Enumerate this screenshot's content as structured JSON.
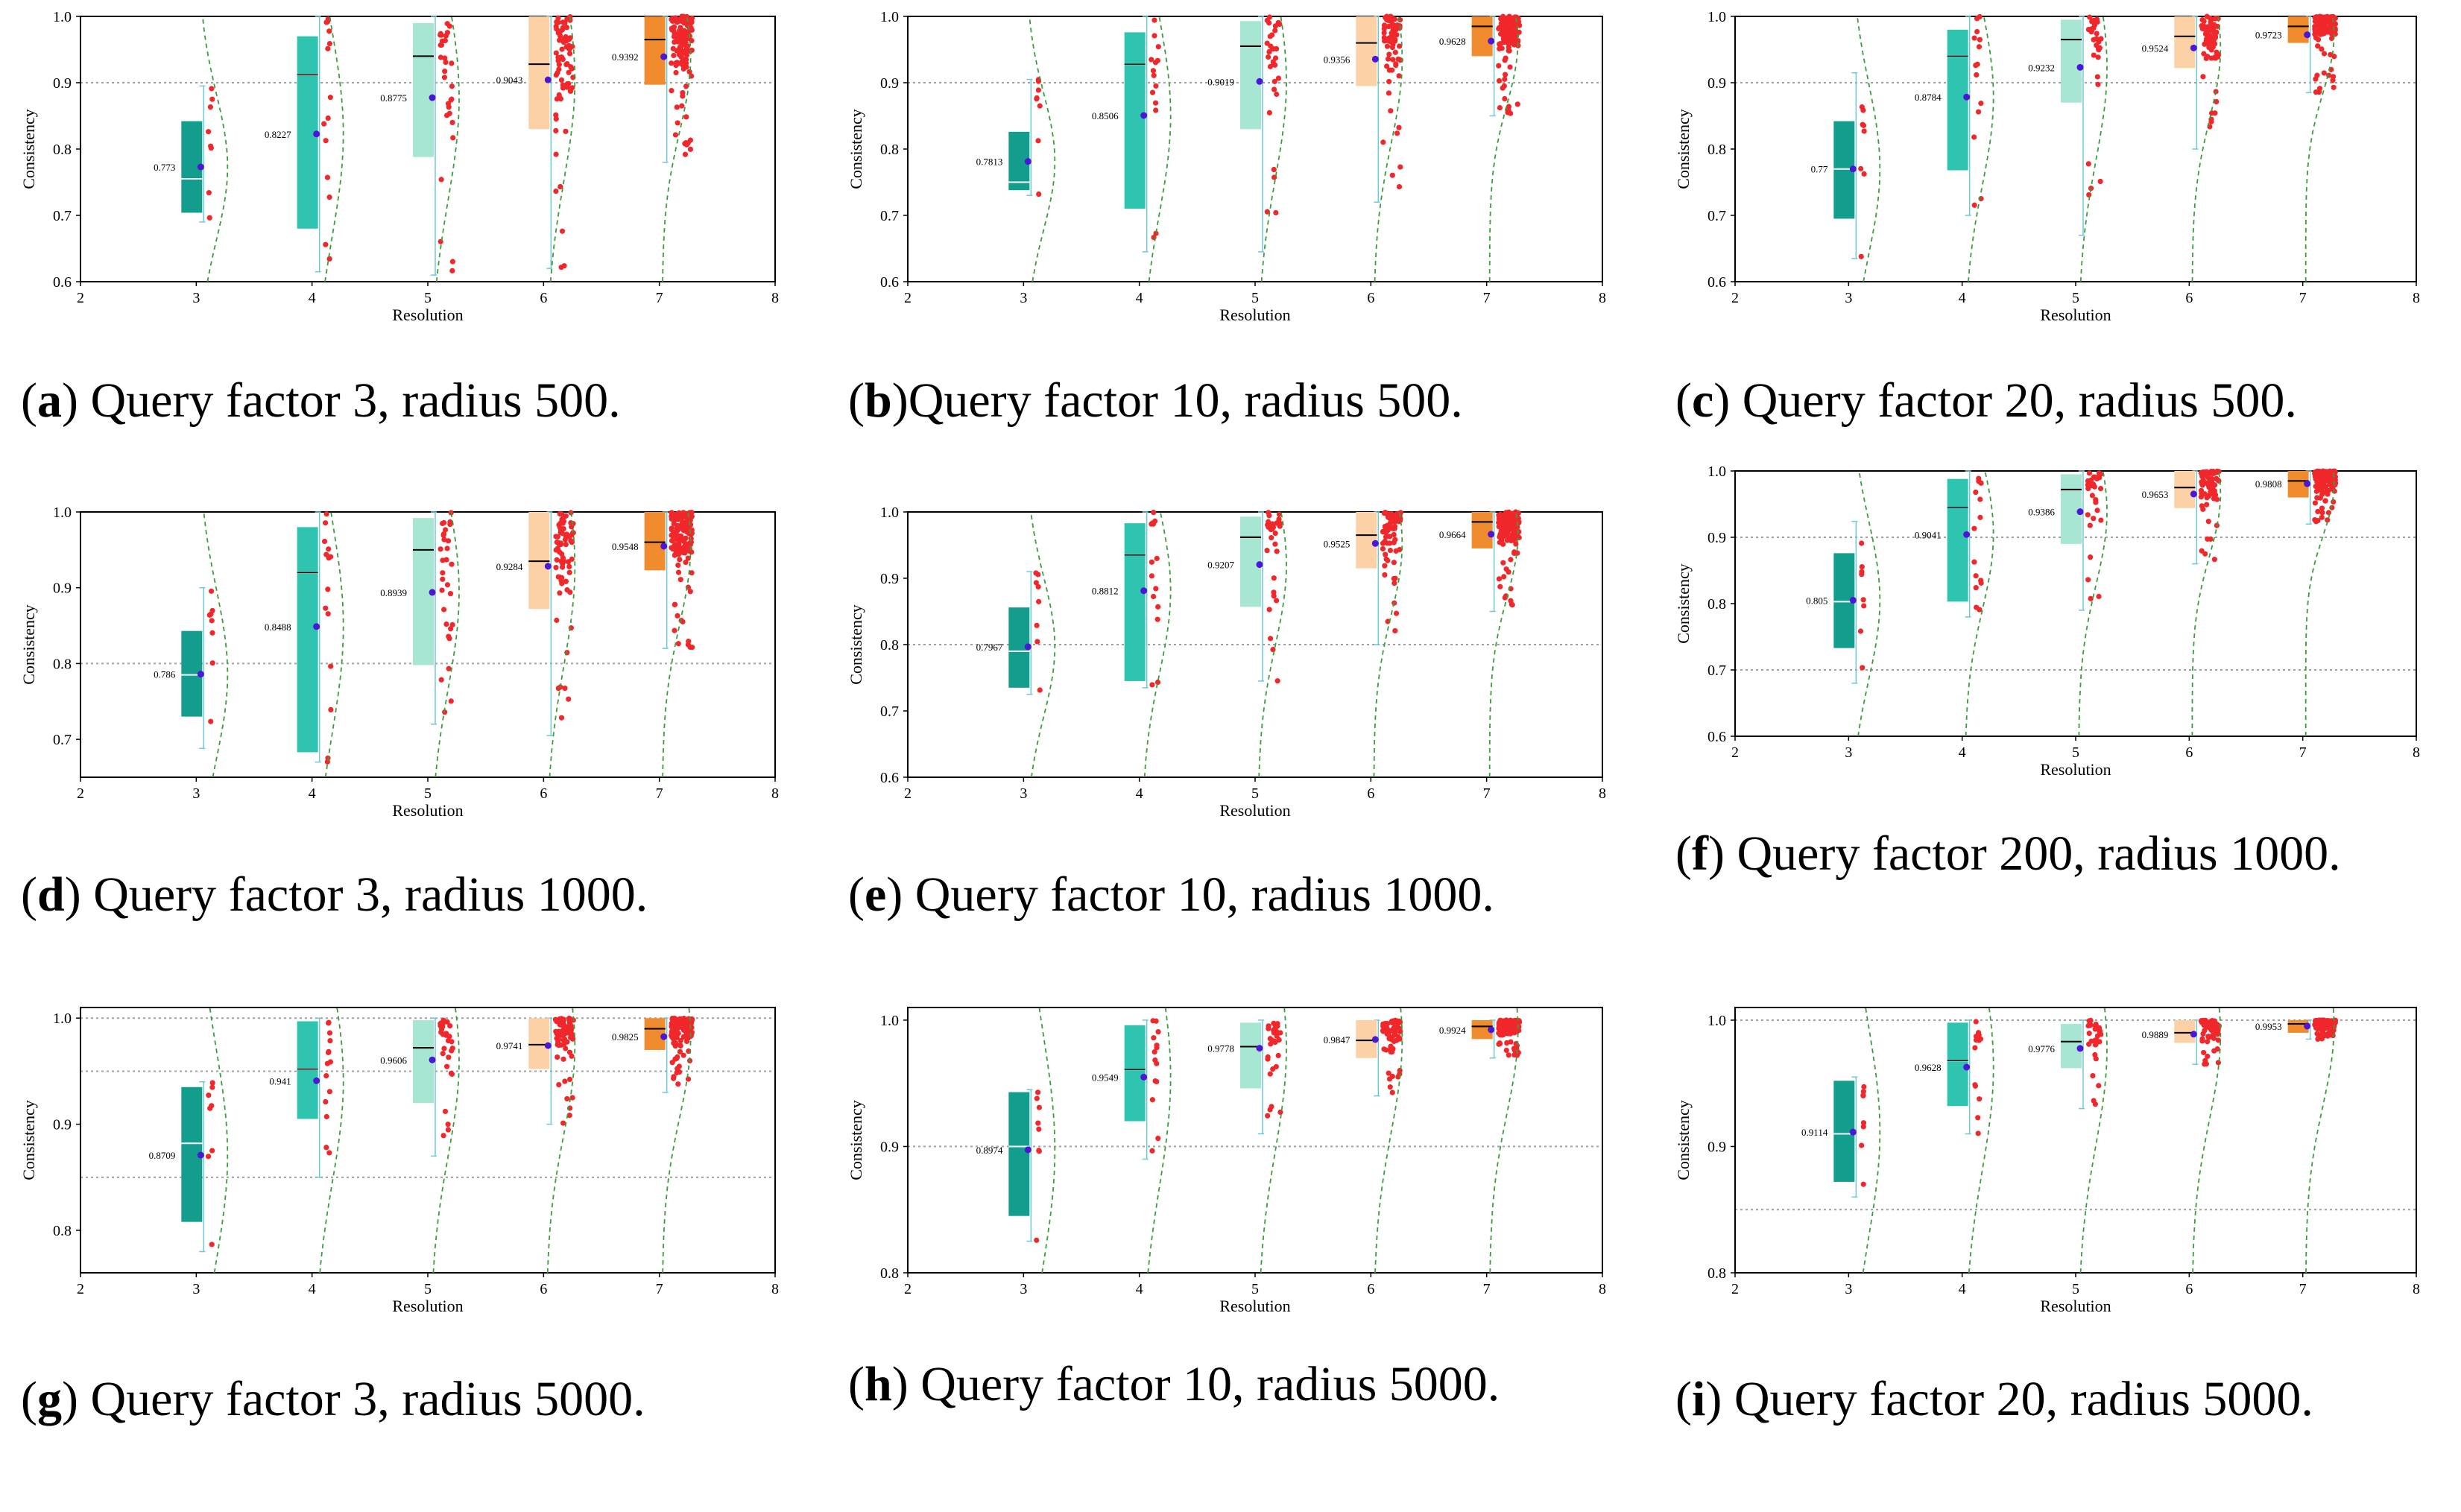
{
  "figure": {
    "x_label": "Resolution",
    "y_label": "Consistency"
  },
  "chart_data": [
    {
      "id": "a",
      "type": "box",
      "caption_letter": "a",
      "caption_text": "Query factor 3, radius 500.",
      "xlabel": "Resolution",
      "ylabel": "Consistency",
      "xlim": [
        2,
        8
      ],
      "ylim": [
        0.6,
        1.0
      ],
      "x_ticks": [
        "2",
        "3",
        "4",
        "5",
        "6",
        "7",
        "8"
      ],
      "y_ticks": [
        "0.6",
        "0.7",
        "0.8",
        "0.9",
        "1.0"
      ],
      "threshold_lines": [
        0.9
      ],
      "boxes": [
        {
          "resolution": 3,
          "q1": 0.704,
          "median": 0.755,
          "q3": 0.842,
          "whisker_low": 0.69,
          "whisker_high": 0.895,
          "mean": 0.773,
          "mean_label": "0.773"
        },
        {
          "resolution": 4,
          "q1": 0.68,
          "median": 0.912,
          "q3": 0.97,
          "whisker_low": 0.615,
          "whisker_high": 1.0,
          "mean": 0.8227,
          "mean_label": "0.8227"
        },
        {
          "resolution": 5,
          "q1": 0.788,
          "median": 0.94,
          "q3": 0.99,
          "whisker_low": 0.61,
          "whisker_high": 1.0,
          "mean": 0.8775,
          "mean_label": "0.8775"
        },
        {
          "resolution": 6,
          "q1": 0.83,
          "median": 0.928,
          "q3": 1.0,
          "whisker_low": 0.62,
          "whisker_high": 1.0,
          "mean": 0.9043,
          "mean_label": "0.9043"
        },
        {
          "resolution": 7,
          "q1": 0.897,
          "median": 0.965,
          "q3": 1.0,
          "whisker_low": 0.78,
          "whisker_high": 1.0,
          "mean": 0.9392,
          "mean_label": "0.9392"
        }
      ]
    },
    {
      "id": "b",
      "type": "box",
      "caption_letter": "b",
      "caption_text": "Query factor 10, radius 500.",
      "xlabel": "Resolution",
      "ylabel": "Consistency",
      "xlim": [
        2,
        8
      ],
      "ylim": [
        0.6,
        1.0
      ],
      "x_ticks": [
        "2",
        "3",
        "4",
        "5",
        "6",
        "7",
        "8"
      ],
      "y_ticks": [
        "0.6",
        "0.7",
        "0.8",
        "0.9",
        "1.0"
      ],
      "threshold_lines": [
        0.9
      ],
      "boxes": [
        {
          "resolution": 3,
          "q1": 0.738,
          "median": 0.75,
          "q3": 0.826,
          "whisker_low": 0.73,
          "whisker_high": 0.905,
          "mean": 0.7813,
          "mean_label": "0.7813"
        },
        {
          "resolution": 4,
          "q1": 0.71,
          "median": 0.928,
          "q3": 0.976,
          "whisker_low": 0.645,
          "whisker_high": 1.0,
          "mean": 0.8506,
          "mean_label": "0.8506"
        },
        {
          "resolution": 5,
          "q1": 0.83,
          "median": 0.955,
          "q3": 0.993,
          "whisker_low": 0.645,
          "whisker_high": 1.0,
          "mean": 0.9019,
          "mean_label": "0.9019"
        },
        {
          "resolution": 6,
          "q1": 0.895,
          "median": 0.96,
          "q3": 1.0,
          "whisker_low": 0.72,
          "whisker_high": 1.0,
          "mean": 0.9356,
          "mean_label": "0.9356"
        },
        {
          "resolution": 7,
          "q1": 0.94,
          "median": 0.985,
          "q3": 1.0,
          "whisker_low": 0.85,
          "whisker_high": 1.0,
          "mean": 0.9628,
          "mean_label": "0.9628"
        }
      ]
    },
    {
      "id": "c",
      "type": "box",
      "caption_letter": "c",
      "caption_text": "Query factor 20, radius 500.",
      "xlabel": "Resolution",
      "ylabel": "Consistency",
      "xlim": [
        2,
        8
      ],
      "ylim": [
        0.6,
        1.0
      ],
      "x_ticks": [
        "2",
        "3",
        "4",
        "5",
        "6",
        "7",
        "8"
      ],
      "y_ticks": [
        "0.6",
        "0.7",
        "0.8",
        "0.9",
        "1.0"
      ],
      "threshold_lines": [
        0.9
      ],
      "boxes": [
        {
          "resolution": 3,
          "q1": 0.695,
          "median": 0.77,
          "q3": 0.842,
          "whisker_low": 0.635,
          "whisker_high": 0.915,
          "mean": 0.77,
          "mean_label": "0.77"
        },
        {
          "resolution": 4,
          "q1": 0.768,
          "median": 0.94,
          "q3": 0.98,
          "whisker_low": 0.7,
          "whisker_high": 1.0,
          "mean": 0.8784,
          "mean_label": "0.8784"
        },
        {
          "resolution": 5,
          "q1": 0.87,
          "median": 0.965,
          "q3": 0.995,
          "whisker_low": 0.67,
          "whisker_high": 1.0,
          "mean": 0.9232,
          "mean_label": "0.9232"
        },
        {
          "resolution": 6,
          "q1": 0.922,
          "median": 0.97,
          "q3": 1.0,
          "whisker_low": 0.8,
          "whisker_high": 1.0,
          "mean": 0.9524,
          "mean_label": "0.9524"
        },
        {
          "resolution": 7,
          "q1": 0.96,
          "median": 0.985,
          "q3": 1.0,
          "whisker_low": 0.885,
          "whisker_high": 1.0,
          "mean": 0.9723,
          "mean_label": "0.9723"
        }
      ]
    },
    {
      "id": "d",
      "type": "box",
      "caption_letter": "d",
      "caption_text": "Query factor 3, radius 1000.",
      "xlabel": "Resolution",
      "ylabel": "Consistency",
      "xlim": [
        2,
        8
      ],
      "ylim": [
        0.65,
        1.0
      ],
      "x_ticks": [
        "2",
        "3",
        "4",
        "5",
        "6",
        "7",
        "8"
      ],
      "y_ticks": [
        "0.7",
        "0.8",
        "0.9",
        "1.0"
      ],
      "threshold_lines": [
        0.8
      ],
      "boxes": [
        {
          "resolution": 3,
          "q1": 0.73,
          "median": 0.785,
          "q3": 0.843,
          "whisker_low": 0.688,
          "whisker_high": 0.9,
          "mean": 0.786,
          "mean_label": "0.786"
        },
        {
          "resolution": 4,
          "q1": 0.683,
          "median": 0.92,
          "q3": 0.98,
          "whisker_low": 0.67,
          "whisker_high": 1.0,
          "mean": 0.8488,
          "mean_label": "0.8488"
        },
        {
          "resolution": 5,
          "q1": 0.798,
          "median": 0.95,
          "q3": 0.992,
          "whisker_low": 0.72,
          "whisker_high": 1.0,
          "mean": 0.8939,
          "mean_label": "0.8939"
        },
        {
          "resolution": 6,
          "q1": 0.872,
          "median": 0.935,
          "q3": 1.0,
          "whisker_low": 0.705,
          "whisker_high": 1.0,
          "mean": 0.9284,
          "mean_label": "0.9284"
        },
        {
          "resolution": 7,
          "q1": 0.923,
          "median": 0.96,
          "q3": 1.0,
          "whisker_low": 0.82,
          "whisker_high": 1.0,
          "mean": 0.9548,
          "mean_label": "0.9548"
        }
      ]
    },
    {
      "id": "e",
      "type": "box",
      "caption_letter": "e",
      "caption_text": "Query factor 10, radius 1000.",
      "xlabel": "Resolution",
      "ylabel": "Consistency",
      "xlim": [
        2,
        8
      ],
      "ylim": [
        0.6,
        1.0
      ],
      "x_ticks": [
        "2",
        "3",
        "4",
        "5",
        "6",
        "7",
        "8"
      ],
      "y_ticks": [
        "0.6",
        "0.7",
        "0.8",
        "0.9",
        "1.0"
      ],
      "threshold_lines": [
        0.8
      ],
      "boxes": [
        {
          "resolution": 3,
          "q1": 0.735,
          "median": 0.79,
          "q3": 0.856,
          "whisker_low": 0.725,
          "whisker_high": 0.91,
          "mean": 0.7967,
          "mean_label": "0.7967"
        },
        {
          "resolution": 4,
          "q1": 0.745,
          "median": 0.935,
          "q3": 0.983,
          "whisker_low": 0.735,
          "whisker_high": 1.0,
          "mean": 0.8812,
          "mean_label": "0.8812"
        },
        {
          "resolution": 5,
          "q1": 0.857,
          "median": 0.962,
          "q3": 0.993,
          "whisker_low": 0.745,
          "whisker_high": 1.0,
          "mean": 0.9207,
          "mean_label": "0.9207"
        },
        {
          "resolution": 6,
          "q1": 0.915,
          "median": 0.965,
          "q3": 1.0,
          "whisker_low": 0.8,
          "whisker_high": 1.0,
          "mean": 0.9525,
          "mean_label": "0.9525"
        },
        {
          "resolution": 7,
          "q1": 0.945,
          "median": 0.985,
          "q3": 1.0,
          "whisker_low": 0.85,
          "whisker_high": 1.0,
          "mean": 0.9664,
          "mean_label": "0.9664"
        }
      ]
    },
    {
      "id": "f",
      "type": "box",
      "caption_letter": "f",
      "caption_text": "Query factor 200, radius 1000.",
      "xlabel": "Resolution",
      "ylabel": "Consistency",
      "xlim": [
        2,
        8
      ],
      "ylim": [
        0.6,
        1.0
      ],
      "x_ticks": [
        "2",
        "3",
        "4",
        "5",
        "6",
        "7",
        "8"
      ],
      "y_ticks": [
        "0.6",
        "0.7",
        "0.8",
        "0.9",
        "1.0"
      ],
      "threshold_lines": [
        1.0,
        0.9,
        0.7
      ],
      "boxes": [
        {
          "resolution": 3,
          "q1": 0.733,
          "median": 0.803,
          "q3": 0.876,
          "whisker_low": 0.68,
          "whisker_high": 0.924,
          "mean": 0.805,
          "mean_label": "0.805"
        },
        {
          "resolution": 4,
          "q1": 0.803,
          "median": 0.945,
          "q3": 0.988,
          "whisker_low": 0.78,
          "whisker_high": 1.0,
          "mean": 0.9041,
          "mean_label": "0.9041"
        },
        {
          "resolution": 5,
          "q1": 0.89,
          "median": 0.972,
          "q3": 0.995,
          "whisker_low": 0.79,
          "whisker_high": 1.0,
          "mean": 0.9386,
          "mean_label": "0.9386"
        },
        {
          "resolution": 6,
          "q1": 0.944,
          "median": 0.975,
          "q3": 1.0,
          "whisker_low": 0.86,
          "whisker_high": 1.0,
          "mean": 0.9653,
          "mean_label": "0.9653"
        },
        {
          "resolution": 7,
          "q1": 0.96,
          "median": 0.985,
          "q3": 1.0,
          "whisker_low": 0.92,
          "whisker_high": 1.0,
          "mean": 0.9808,
          "mean_label": "0.9808"
        }
      ]
    },
    {
      "id": "g",
      "type": "box",
      "caption_letter": "g",
      "caption_text": "Query factor 3, radius 5000.",
      "xlabel": "Resolution",
      "ylabel": "Consistency",
      "xlim": [
        2,
        8
      ],
      "ylim": [
        0.76,
        1.01
      ],
      "x_ticks": [
        "2",
        "3",
        "4",
        "5",
        "6",
        "7",
        "8"
      ],
      "y_ticks": [
        "0.8",
        "0.9",
        "1.0"
      ],
      "threshold_lines": [
        1.0,
        0.95,
        0.85
      ],
      "boxes": [
        {
          "resolution": 3,
          "q1": 0.808,
          "median": 0.882,
          "q3": 0.935,
          "whisker_low": 0.78,
          "whisker_high": 0.94,
          "mean": 0.8709,
          "mean_label": "0.8709"
        },
        {
          "resolution": 4,
          "q1": 0.905,
          "median": 0.952,
          "q3": 0.997,
          "whisker_low": 0.85,
          "whisker_high": 1.0,
          "mean": 0.941,
          "mean_label": "0.941"
        },
        {
          "resolution": 5,
          "q1": 0.92,
          "median": 0.972,
          "q3": 0.998,
          "whisker_low": 0.87,
          "whisker_high": 1.0,
          "mean": 0.9606,
          "mean_label": "0.9606"
        },
        {
          "resolution": 6,
          "q1": 0.952,
          "median": 0.975,
          "q3": 1.0,
          "whisker_low": 0.9,
          "whisker_high": 1.0,
          "mean": 0.9741,
          "mean_label": "0.9741"
        },
        {
          "resolution": 7,
          "q1": 0.97,
          "median": 0.99,
          "q3": 1.0,
          "whisker_low": 0.93,
          "whisker_high": 1.0,
          "mean": 0.9825,
          "mean_label": "0.9825"
        }
      ]
    },
    {
      "id": "h",
      "type": "box",
      "caption_letter": "h",
      "caption_text": "Query factor 10, radius 5000.",
      "xlabel": "Resolution",
      "ylabel": "Consistency",
      "xlim": [
        2,
        8
      ],
      "ylim": [
        0.8,
        1.01
      ],
      "x_ticks": [
        "2",
        "3",
        "4",
        "5",
        "6",
        "7",
        "8"
      ],
      "y_ticks": [
        "0.8",
        "0.9",
        "1.0"
      ],
      "threshold_lines": [
        0.9
      ],
      "boxes": [
        {
          "resolution": 3,
          "q1": 0.845,
          "median": 0.9,
          "q3": 0.943,
          "whisker_low": 0.825,
          "whisker_high": 0.945,
          "mean": 0.8974,
          "mean_label": "0.8974"
        },
        {
          "resolution": 4,
          "q1": 0.92,
          "median": 0.961,
          "q3": 0.996,
          "whisker_low": 0.89,
          "whisker_high": 1.0,
          "mean": 0.9549,
          "mean_label": "0.9549"
        },
        {
          "resolution": 5,
          "q1": 0.946,
          "median": 0.979,
          "q3": 0.998,
          "whisker_low": 0.91,
          "whisker_high": 1.0,
          "mean": 0.9778,
          "mean_label": "0.9778"
        },
        {
          "resolution": 6,
          "q1": 0.97,
          "median": 0.984,
          "q3": 1.0,
          "whisker_low": 0.94,
          "whisker_high": 1.0,
          "mean": 0.9847,
          "mean_label": "0.9847"
        },
        {
          "resolution": 7,
          "q1": 0.985,
          "median": 0.995,
          "q3": 1.0,
          "whisker_low": 0.97,
          "whisker_high": 1.0,
          "mean": 0.9924,
          "mean_label": "0.9924"
        }
      ]
    },
    {
      "id": "i",
      "type": "box",
      "caption_letter": "i",
      "caption_text": "Query factor 20, radius 5000.",
      "xlabel": "Resolution",
      "ylabel": "Consistency",
      "xlim": [
        2,
        8
      ],
      "ylim": [
        0.8,
        1.01
      ],
      "x_ticks": [
        "2",
        "3",
        "4",
        "5",
        "6",
        "7",
        "8"
      ],
      "y_ticks": [
        "0.8",
        "0.9",
        "1.0"
      ],
      "threshold_lines": [
        1.0,
        0.85
      ],
      "boxes": [
        {
          "resolution": 3,
          "q1": 0.872,
          "median": 0.91,
          "q3": 0.952,
          "whisker_low": 0.86,
          "whisker_high": 0.955,
          "mean": 0.9114,
          "mean_label": "0.9114"
        },
        {
          "resolution": 4,
          "q1": 0.932,
          "median": 0.968,
          "q3": 0.998,
          "whisker_low": 0.91,
          "whisker_high": 1.0,
          "mean": 0.9628,
          "mean_label": "0.9628"
        },
        {
          "resolution": 5,
          "q1": 0.962,
          "median": 0.983,
          "q3": 0.997,
          "whisker_low": 0.93,
          "whisker_high": 1.0,
          "mean": 0.9776,
          "mean_label": "0.9776"
        },
        {
          "resolution": 6,
          "q1": 0.982,
          "median": 0.99,
          "q3": 1.0,
          "whisker_low": 0.965,
          "whisker_high": 1.0,
          "mean": 0.9889,
          "mean_label": "0.9889"
        },
        {
          "resolution": 7,
          "q1": 0.99,
          "median": 0.997,
          "q3": 1.0,
          "whisker_low": 0.985,
          "whisker_high": 1.0,
          "mean": 0.9953,
          "mean_label": "0.9953"
        }
      ]
    }
  ],
  "colors": {
    "box_res3": "#129d8c",
    "box_res4": "#2ec4b0",
    "box_res5": "#a8e6d4",
    "box_res6": "#fbd1a5",
    "box_res7": "#f08b2e",
    "whisker": "#6fc8d8",
    "mean_dot": "#4b16d8",
    "points": "#f0272b",
    "density_curve": "#3a9e3a",
    "threshold_line": "#a0a0a0",
    "frame": "#000000"
  }
}
